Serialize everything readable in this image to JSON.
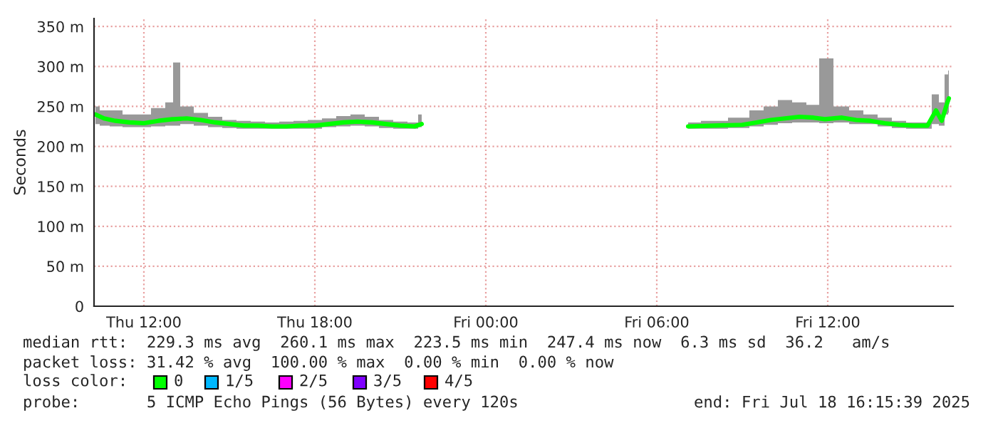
{
  "chart_data": {
    "type": "line",
    "ylabel": "Seconds",
    "xlim": [
      "2025-07-17T10:15",
      "2025-07-18T16:24"
    ],
    "xticks": [
      {
        "value": "2025-07-17T12:00",
        "label": "Thu 12:00"
      },
      {
        "value": "2025-07-17T18:00",
        "label": "Thu 18:00"
      },
      {
        "value": "2025-07-18T00:00",
        "label": "Fri 00:00"
      },
      {
        "value": "2025-07-18T06:00",
        "label": "Fri 06:00"
      },
      {
        "value": "2025-07-18T12:00",
        "label": "Fri 12:00"
      }
    ],
    "ylim": [
      0,
      360
    ],
    "yticks": [
      0,
      {
        "value": 50,
        "label": "50 m"
      },
      {
        "value": 100,
        "label": "100 m"
      },
      {
        "value": 150,
        "label": "150 m"
      },
      {
        "value": 200,
        "label": "200 m"
      },
      {
        "value": 250,
        "label": "250 m"
      },
      {
        "value": 300,
        "label": "300 m"
      },
      {
        "value": 350,
        "label": "350 m"
      }
    ],
    "grid": true,
    "legend": false,
    "marker": "none",
    "line_style": "solid",
    "series": [
      {
        "color": "#00ff00",
        "x": [
          "2025-07-17T10:18",
          "2025-07-17T10:36",
          "2025-07-17T11:00",
          "2025-07-17T11:30",
          "2025-07-17T12:00",
          "2025-07-17T12:30",
          "2025-07-17T13:00",
          "2025-07-17T13:03",
          "2025-07-17T13:30",
          "2025-07-17T14:00",
          "2025-07-17T14:30",
          "2025-07-17T15:00",
          "2025-07-17T15:30",
          "2025-07-17T16:00",
          "2025-07-17T16:30",
          "2025-07-17T17:00",
          "2025-07-17T17:30",
          "2025-07-17T18:00",
          "2025-07-17T18:30",
          "2025-07-17T19:00",
          "2025-07-17T19:30",
          "2025-07-17T20:00",
          "2025-07-17T20:30",
          "2025-07-17T21:00",
          "2025-07-17T21:30",
          "2025-07-17T21:45",
          "2025-07-18T02:00",
          "2025-07-18T07:06",
          "2025-07-18T08:00",
          "2025-07-18T09:00",
          "2025-07-18T09:30",
          "2025-07-18T10:00",
          "2025-07-18T10:30",
          "2025-07-18T11:00",
          "2025-07-18T11:30",
          "2025-07-18T11:54",
          "2025-07-18T12:30",
          "2025-07-18T13:00",
          "2025-07-18T13:30",
          "2025-07-18T14:00",
          "2025-07-18T14:30",
          "2025-07-18T15:00",
          "2025-07-18T15:30",
          "2025-07-18T15:48",
          "2025-07-18T16:00",
          "2025-07-18T16:12",
          "2025-07-18T16:15"
        ],
        "values": [
          240,
          235,
          232,
          230,
          229,
          232,
          234,
          234,
          235,
          233,
          230,
          228,
          226,
          226,
          225,
          225,
          226,
          226,
          228,
          230,
          231,
          230,
          228,
          226,
          225,
          228,
          null,
          225,
          226,
          227,
          230,
          233,
          235,
          237,
          236,
          234,
          236,
          233,
          232,
          229,
          227,
          226,
          226,
          245,
          232,
          255,
          260
        ],
        "lower": [
          228,
          226,
          225,
          224,
          224,
          225,
          226,
          226,
          228,
          226,
          224,
          223,
          222,
          222,
          222,
          222,
          222,
          222,
          224,
          225,
          226,
          225,
          223,
          222,
          222,
          224,
          null,
          222,
          222,
          223,
          225,
          227,
          229,
          230,
          230,
          229,
          230,
          228,
          228,
          225,
          223,
          222,
          222,
          228,
          226,
          240,
          242
        ],
        "upper": [
          250,
          245,
          245,
          240,
          240,
          248,
          255,
          305,
          250,
          242,
          237,
          233,
          232,
          231,
          230,
          231,
          232,
          233,
          235,
          238,
          240,
          237,
          233,
          231,
          230,
          240,
          null,
          230,
          232,
          236,
          245,
          250,
          258,
          255,
          252,
          310,
          250,
          245,
          240,
          236,
          232,
          230,
          230,
          265,
          255,
          290,
          295
        ]
      }
    ],
    "annotations": [
      "median rtt:  229.3 ms avg  260.1 ms max  223.5 ms min  247.4 ms now  6.3 ms sd  36.2   am/s",
      "packet loss: 31.42 % avg  100.00 % max  0.00 % min  0.00 % now",
      "loss color:",
      "0",
      "1/5",
      "2/5",
      "3/5",
      "4/5",
      "probe:       5 ICMP Echo Pings (56 Bytes) every 120s",
      "end: Fri Jul 18 16:15:39 2025"
    ]
  }
}
